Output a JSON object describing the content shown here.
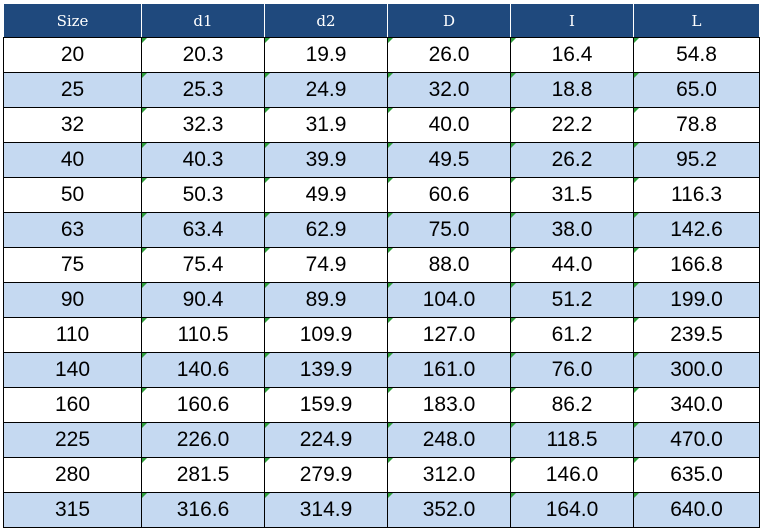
{
  "table": {
    "headers": [
      "Size",
      "d1",
      "d2",
      "D",
      "I",
      "L"
    ],
    "rows": [
      [
        "20",
        "20.3",
        "19.9",
        "26.0",
        "16.4",
        "54.8"
      ],
      [
        "25",
        "25.3",
        "24.9",
        "32.0",
        "18.8",
        "65.0"
      ],
      [
        "32",
        "32.3",
        "31.9",
        "40.0",
        "22.2",
        "78.8"
      ],
      [
        "40",
        "40.3",
        "39.9",
        "49.5",
        "26.2",
        "95.2"
      ],
      [
        "50",
        "50.3",
        "49.9",
        "60.6",
        "31.5",
        "116.3"
      ],
      [
        "63",
        "63.4",
        "62.9",
        "75.0",
        "38.0",
        "142.6"
      ],
      [
        "75",
        "75.4",
        "74.9",
        "88.0",
        "44.0",
        "166.8"
      ],
      [
        "90",
        "90.4",
        "89.9",
        "104.0",
        "51.2",
        "199.0"
      ],
      [
        "110",
        "110.5",
        "109.9",
        "127.0",
        "61.2",
        "239.5"
      ],
      [
        "140",
        "140.6",
        "139.9",
        "161.0",
        "76.0",
        "300.0"
      ],
      [
        "160",
        "160.6",
        "159.9",
        "183.0",
        "86.2",
        "340.0"
      ],
      [
        "225",
        "226.0",
        "224.9",
        "248.0",
        "118.5",
        "470.0"
      ],
      [
        "280",
        "281.5",
        "279.9",
        "312.0",
        "146.0",
        "635.0"
      ],
      [
        "315",
        "316.6",
        "314.9",
        "352.0",
        "164.0",
        "640.0"
      ]
    ]
  },
  "colors": {
    "header_bg": "#1f497d",
    "header_text": "#ffffff",
    "band_row": "#c5d9f1",
    "plain_row": "#ffffff",
    "cell_marker": "#2e9e3a"
  }
}
